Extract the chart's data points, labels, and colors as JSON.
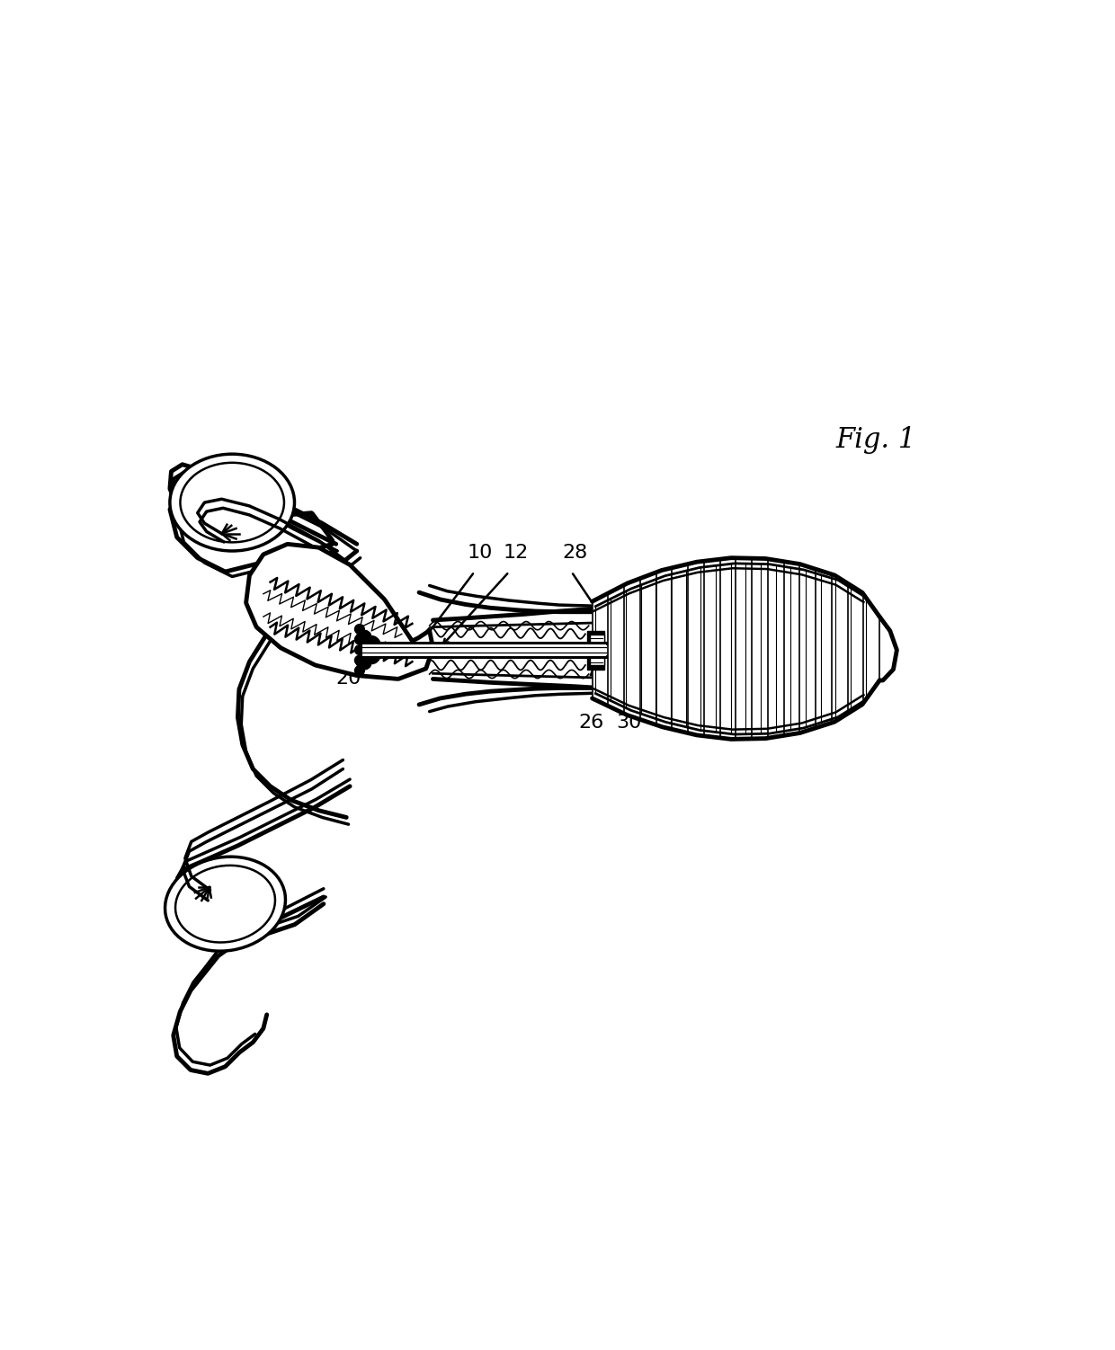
{
  "fig_label": "Fig. 1",
  "background_color": "#ffffff",
  "line_color": "#000000",
  "lw_thick": 3.5,
  "lw_med": 2.5,
  "lw_thin": 1.5,
  "label_fontsize": 16
}
